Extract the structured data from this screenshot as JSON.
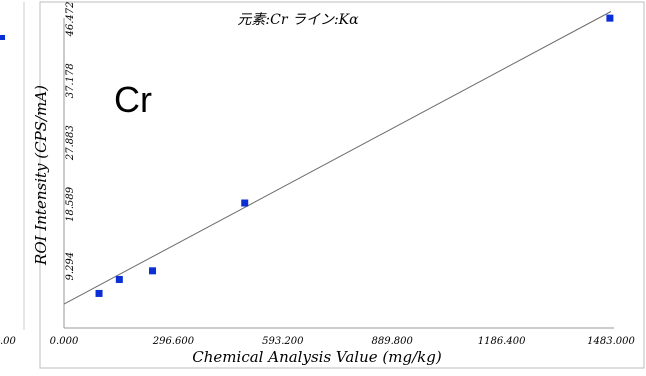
{
  "chart_data": {
    "type": "scatter",
    "title": "元素:Cr ライン:Kα",
    "annotation": "Cr",
    "xlabel": "Chemical Analysis Value (mg/kg)",
    "ylabel": "ROI Intensity (CPS/mA)",
    "xlim": [
      0,
      1483.0
    ],
    "ylim": [
      0,
      46.472
    ],
    "x_ticks": [
      "0.000",
      "296.600",
      "593.200",
      "889.800",
      "1186.400",
      "1483.000"
    ],
    "x_tick_values": [
      0,
      296.6,
      593.2,
      889.8,
      1186.4,
      1483.0
    ],
    "y_ticks": [
      "9.294",
      "18.589",
      "27.883",
      "37.178",
      "46.472"
    ],
    "y_tick_values": [
      9.294,
      18.589,
      27.883,
      37.178,
      46.472
    ],
    "points": [
      {
        "x": 95,
        "y": 5.2
      },
      {
        "x": 150,
        "y": 7.3
      },
      {
        "x": 240,
        "y": 8.6
      },
      {
        "x": 490,
        "y": 18.8
      },
      {
        "x": 1480,
        "y": 46.6
      }
    ],
    "fit_line": {
      "x": [
        0,
        1483.0
      ],
      "y": [
        3.6,
        47.6
      ]
    },
    "grid": false,
    "marker_color": "#0a2fd6",
    "line_color": "#6b6b6b",
    "frame_color": "#bdbdbd"
  },
  "fragments": {
    "left_tick_label": ".00"
  }
}
